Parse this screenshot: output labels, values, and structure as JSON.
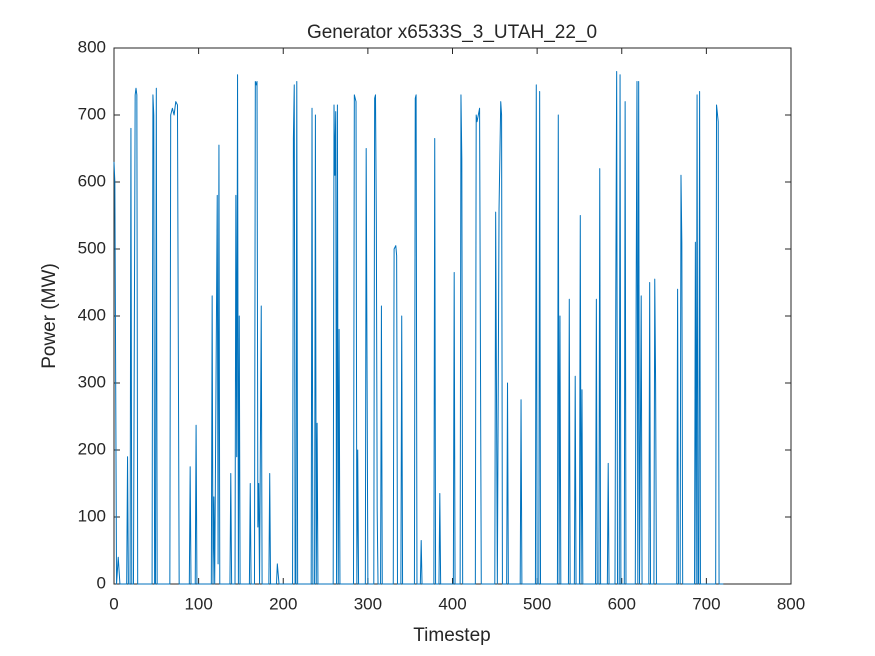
{
  "chart_data": {
    "type": "line",
    "title": "Generator x6533S_3_UTAH_22_0",
    "xlabel": "Timestep",
    "ylabel": "Power (MW)",
    "color": "#0072bd",
    "x": [
      0,
      1,
      3,
      5,
      7,
      15,
      16,
      17,
      19,
      20,
      21,
      23,
      25,
      26,
      27,
      28,
      45,
      46,
      47,
      48,
      49,
      50,
      51,
      66,
      67,
      69,
      71,
      73,
      75,
      77,
      89,
      90,
      91,
      96,
      97,
      98,
      115,
      116,
      117,
      118,
      119,
      122,
      123,
      124,
      125,
      137,
      138,
      139,
      143,
      144,
      145,
      146,
      147,
      148,
      149,
      160,
      161,
      162,
      166,
      167,
      168,
      169,
      170,
      171,
      172,
      174,
      175,
      183,
      184,
      185,
      192,
      193,
      195,
      211,
      212,
      213,
      214,
      215,
      216,
      217,
      233,
      234,
      235,
      237,
      238,
      239,
      240,
      241,
      259,
      260,
      261,
      262,
      263,
      264,
      265,
      266,
      267,
      283,
      284,
      286,
      287,
      288,
      289,
      297,
      298,
      300,
      307,
      308,
      309,
      310,
      311,
      312,
      315,
      316,
      317,
      330,
      331,
      333,
      334,
      335,
      339,
      340,
      341,
      355,
      356,
      357,
      358,
      362,
      363,
      364,
      378,
      379,
      380,
      384,
      385,
      386,
      401,
      402,
      403,
      409,
      410,
      411,
      412,
      427,
      428,
      429,
      432,
      434,
      450,
      451,
      453,
      455,
      457,
      458,
      459,
      464,
      465,
      466,
      480,
      481,
      482,
      498,
      499,
      500,
      502,
      503,
      504,
      524,
      525,
      526,
      527,
      528,
      537,
      538,
      539,
      544,
      545,
      546,
      550,
      551,
      552,
      553,
      554,
      569,
      570,
      571,
      573,
      574,
      575,
      583,
      584,
      585,
      592,
      593,
      594,
      595,
      597,
      598,
      599,
      603,
      604,
      605,
      616,
      617,
      618,
      619,
      620,
      621,
      623,
      624,
      632,
      633,
      634,
      638,
      639,
      640,
      641,
      665,
      666,
      667,
      669,
      670,
      671,
      672,
      686,
      687,
      688,
      689,
      690,
      691,
      692,
      693,
      711,
      712,
      714,
      715,
      720
    ],
    "values": [
      630,
      600,
      0,
      40,
      0,
      0,
      190,
      0,
      0,
      680,
      0,
      0,
      730,
      740,
      730,
      0,
      0,
      730,
      700,
      0,
      0,
      740,
      0,
      0,
      700,
      710,
      700,
      720,
      715,
      0,
      0,
      175,
      0,
      0,
      237,
      0,
      0,
      430,
      0,
      130,
      0,
      580,
      30,
      655,
      0,
      0,
      165,
      0,
      0,
      580,
      190,
      760,
      0,
      400,
      0,
      0,
      150,
      0,
      0,
      750,
      745,
      750,
      85,
      150,
      0,
      415,
      0,
      0,
      165,
      0,
      0,
      30,
      0,
      0,
      665,
      745,
      0,
      0,
      750,
      0,
      0,
      710,
      0,
      0,
      700,
      0,
      240,
      0,
      0,
      715,
      610,
      705,
      0,
      715,
      0,
      380,
      0,
      0,
      730,
      720,
      0,
      200,
      0,
      0,
      650,
      0,
      0,
      725,
      730,
      540,
      110,
      0,
      0,
      415,
      0,
      0,
      500,
      505,
      490,
      0,
      0,
      400,
      0,
      0,
      725,
      730,
      0,
      0,
      65,
      0,
      0,
      665,
      0,
      0,
      135,
      0,
      0,
      465,
      0,
      0,
      730,
      635,
      0,
      0,
      700,
      690,
      710,
      0,
      0,
      555,
      0,
      560,
      720,
      700,
      0,
      0,
      300,
      0,
      0,
      275,
      0,
      0,
      745,
      0,
      0,
      735,
      0,
      0,
      700,
      0,
      400,
      0,
      0,
      425,
      0,
      0,
      310,
      0,
      0,
      550,
      0,
      290,
      0,
      0,
      425,
      0,
      0,
      620,
      0,
      0,
      180,
      0,
      0,
      445,
      765,
      0,
      0,
      760,
      0,
      0,
      720,
      0,
      0,
      425,
      750,
      0,
      750,
      0,
      430,
      0,
      0,
      450,
      0,
      0,
      455,
      300,
      0,
      0,
      440,
      0,
      0,
      610,
      510,
      0,
      0,
      510,
      0,
      730,
      0,
      0,
      735,
      0,
      0,
      715,
      690,
      0,
      0
    ],
    "xlim": [
      0,
      800
    ],
    "xticks": [
      0,
      100,
      200,
      300,
      400,
      500,
      600,
      700,
      800
    ],
    "ylim": [
      0,
      800
    ],
    "yticks": [
      0,
      100,
      200,
      300,
      400,
      500,
      600,
      700,
      800
    ]
  }
}
